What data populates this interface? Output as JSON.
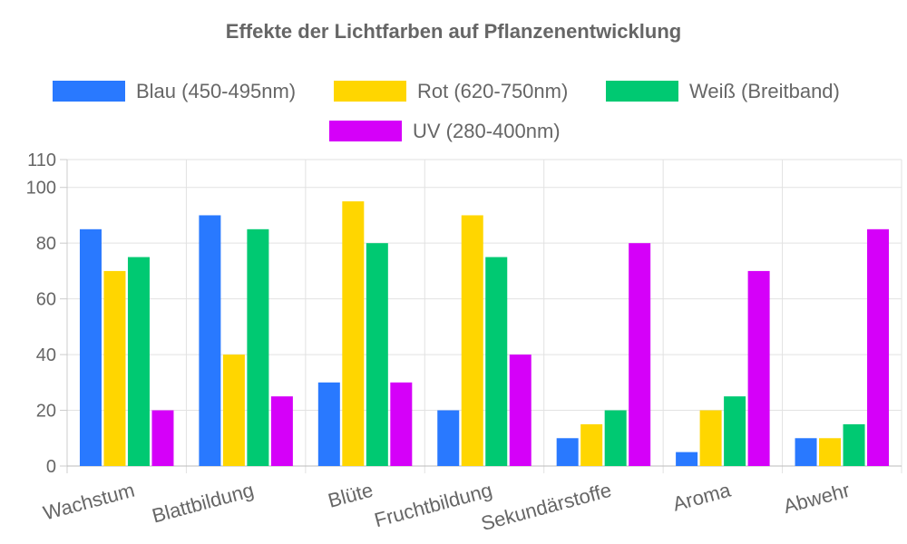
{
  "chart_data": {
    "type": "bar",
    "title": "Effekte der Lichtfarben auf Pflanzenentwicklung",
    "xlabel": "",
    "ylabel": "",
    "categories": [
      "Wachstum",
      "Blattbildung",
      "Blüte",
      "Fruchtbildung",
      "Sekundärstoffe",
      "Aroma",
      "Abwehr"
    ],
    "series": [
      {
        "name": "Blau (450-495nm)",
        "color": "#2979ff",
        "values": [
          85,
          90,
          30,
          20,
          10,
          5,
          10
        ]
      },
      {
        "name": "Rot (620-750nm)",
        "color": "#ffd600",
        "values": [
          70,
          40,
          95,
          90,
          15,
          20,
          10
        ]
      },
      {
        "name": "Weiß (Breitband)",
        "color": "#00c972",
        "values": [
          75,
          85,
          80,
          75,
          20,
          25,
          15
        ]
      },
      {
        "name": "UV (280-400nm)",
        "color": "#d500f9",
        "values": [
          20,
          25,
          30,
          40,
          80,
          70,
          85
        ]
      }
    ],
    "ylim": [
      0,
      110
    ],
    "yticks": [
      0,
      20,
      40,
      60,
      80,
      100,
      110
    ],
    "grid": true,
    "legend_position": "top"
  }
}
